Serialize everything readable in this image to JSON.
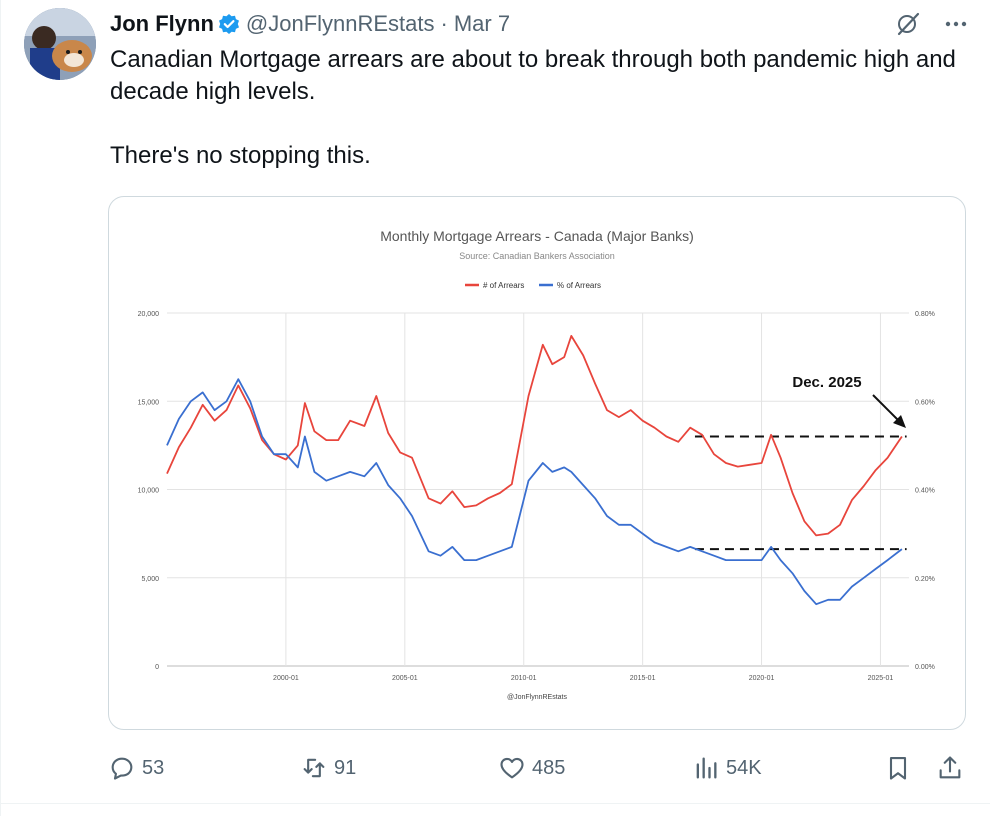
{
  "author": {
    "name": "Jon Flynn",
    "handle": "@JonFlynnREstats",
    "separator": "·",
    "date": "Mar 7"
  },
  "tweet": {
    "line1": "Canadian Mortgage arrears are about to break through both pandemic high and decade high levels.",
    "line2": "There's no stopping this."
  },
  "actions": {
    "replies": "53",
    "reposts": "91",
    "likes": "485",
    "views": "54K"
  },
  "chart_data": {
    "type": "line",
    "title": "Monthly Mortgage Arrears - Canada (Major Banks)",
    "subtitle": "Source: Canadian Bankers Association",
    "watermark": "@JonFlynnREstats",
    "annotation": "Dec. 2025",
    "legend_position": "top",
    "grid": true,
    "x_ticks": [
      "2000-01",
      "2005-01",
      "2010-01",
      "2015-01",
      "2020-01",
      "2025-01"
    ],
    "y_left_ticks": [
      "0",
      "5,000",
      "10,000",
      "15,000",
      "20,000"
    ],
    "y_right_ticks": [
      "0.00%",
      "0.20%",
      "0.40%",
      "0.60%",
      "0.80%"
    ],
    "ylim_left": [
      0,
      20000
    ],
    "ylim_right": [
      0.0,
      0.8
    ],
    "colors": {
      "arrears": "#e8453c",
      "percent": "#3a6fd0"
    },
    "reference_levels": {
      "arrears": 13000,
      "percent": 0.265
    },
    "series": [
      {
        "name": "# of Arrears",
        "axis": "left",
        "points": [
          [
            1995.0,
            10900
          ],
          [
            1995.5,
            12400
          ],
          [
            1996.0,
            13500
          ],
          [
            1996.5,
            14800
          ],
          [
            1997.0,
            13900
          ],
          [
            1997.5,
            14500
          ],
          [
            1998.0,
            15900
          ],
          [
            1998.5,
            14600
          ],
          [
            1999.0,
            12800
          ],
          [
            1999.5,
            12000
          ],
          [
            2000.0,
            11700
          ],
          [
            2000.5,
            12500
          ],
          [
            2000.8,
            14900
          ],
          [
            2001.2,
            13300
          ],
          [
            2001.7,
            12800
          ],
          [
            2002.2,
            12800
          ],
          [
            2002.7,
            13900
          ],
          [
            2003.3,
            13600
          ],
          [
            2003.8,
            15300
          ],
          [
            2004.3,
            13200
          ],
          [
            2004.8,
            12100
          ],
          [
            2005.3,
            11800
          ],
          [
            2006.0,
            9500
          ],
          [
            2006.5,
            9200
          ],
          [
            2007.0,
            9900
          ],
          [
            2007.5,
            9000
          ],
          [
            2008.0,
            9100
          ],
          [
            2008.5,
            9500
          ],
          [
            2009.0,
            9800
          ],
          [
            2009.5,
            10300
          ],
          [
            2010.2,
            15300
          ],
          [
            2010.8,
            18200
          ],
          [
            2011.2,
            17100
          ],
          [
            2011.7,
            17500
          ],
          [
            2012.0,
            18700
          ],
          [
            2012.5,
            17600
          ],
          [
            2013.0,
            16000
          ],
          [
            2013.5,
            14500
          ],
          [
            2014.0,
            14100
          ],
          [
            2014.5,
            14500
          ],
          [
            2015.0,
            13900
          ],
          [
            2015.5,
            13500
          ],
          [
            2016.0,
            13000
          ],
          [
            2016.5,
            12700
          ],
          [
            2017.0,
            13500
          ],
          [
            2017.5,
            13100
          ],
          [
            2018.0,
            12000
          ],
          [
            2018.5,
            11500
          ],
          [
            2019.0,
            11300
          ],
          [
            2019.5,
            11400
          ],
          [
            2020.0,
            11500
          ],
          [
            2020.4,
            13100
          ],
          [
            2020.8,
            11800
          ],
          [
            2021.3,
            9800
          ],
          [
            2021.8,
            8200
          ],
          [
            2022.3,
            7400
          ],
          [
            2022.8,
            7500
          ],
          [
            2023.3,
            8000
          ],
          [
            2023.8,
            9400
          ],
          [
            2024.3,
            10200
          ],
          [
            2024.8,
            11100
          ],
          [
            2025.3,
            11800
          ],
          [
            2025.9,
            13000
          ]
        ]
      },
      {
        "name": "% of Arrears",
        "axis": "right",
        "points": [
          [
            1995.0,
            0.5
          ],
          [
            1995.5,
            0.56
          ],
          [
            1996.0,
            0.6
          ],
          [
            1996.5,
            0.62
          ],
          [
            1997.0,
            0.58
          ],
          [
            1997.5,
            0.6
          ],
          [
            1998.0,
            0.65
          ],
          [
            1998.5,
            0.6
          ],
          [
            1999.0,
            0.52
          ],
          [
            1999.5,
            0.48
          ],
          [
            2000.0,
            0.48
          ],
          [
            2000.5,
            0.45
          ],
          [
            2000.8,
            0.52
          ],
          [
            2001.2,
            0.44
          ],
          [
            2001.7,
            0.42
          ],
          [
            2002.2,
            0.43
          ],
          [
            2002.7,
            0.44
          ],
          [
            2003.3,
            0.43
          ],
          [
            2003.8,
            0.46
          ],
          [
            2004.3,
            0.41
          ],
          [
            2004.8,
            0.38
          ],
          [
            2005.3,
            0.34
          ],
          [
            2006.0,
            0.26
          ],
          [
            2006.5,
            0.25
          ],
          [
            2007.0,
            0.27
          ],
          [
            2007.5,
            0.24
          ],
          [
            2008.0,
            0.24
          ],
          [
            2008.5,
            0.25
          ],
          [
            2009.0,
            0.26
          ],
          [
            2009.5,
            0.27
          ],
          [
            2010.2,
            0.42
          ],
          [
            2010.8,
            0.46
          ],
          [
            2011.2,
            0.44
          ],
          [
            2011.7,
            0.45
          ],
          [
            2012.0,
            0.44
          ],
          [
            2012.5,
            0.41
          ],
          [
            2013.0,
            0.38
          ],
          [
            2013.5,
            0.34
          ],
          [
            2014.0,
            0.32
          ],
          [
            2014.5,
            0.32
          ],
          [
            2015.0,
            0.3
          ],
          [
            2015.5,
            0.28
          ],
          [
            2016.0,
            0.27
          ],
          [
            2016.5,
            0.26
          ],
          [
            2017.0,
            0.27
          ],
          [
            2017.5,
            0.26
          ],
          [
            2018.0,
            0.25
          ],
          [
            2018.5,
            0.24
          ],
          [
            2019.0,
            0.24
          ],
          [
            2019.5,
            0.24
          ],
          [
            2020.0,
            0.24
          ],
          [
            2020.4,
            0.27
          ],
          [
            2020.8,
            0.24
          ],
          [
            2021.3,
            0.21
          ],
          [
            2021.8,
            0.17
          ],
          [
            2022.3,
            0.14
          ],
          [
            2022.8,
            0.15
          ],
          [
            2023.3,
            0.15
          ],
          [
            2023.8,
            0.18
          ],
          [
            2024.3,
            0.2
          ],
          [
            2024.8,
            0.22
          ],
          [
            2025.3,
            0.24
          ],
          [
            2025.9,
            0.265
          ]
        ]
      }
    ]
  }
}
